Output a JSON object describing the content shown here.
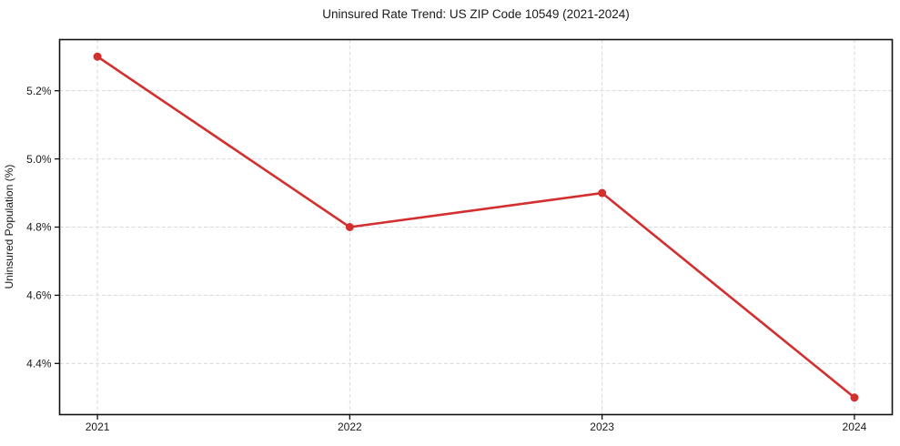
{
  "figure": {
    "background": "#ffffff"
  },
  "chart_data": {
    "type": "line",
    "title": "Uninsured Rate Trend: US ZIP Code 10549 (2021-2024)",
    "xlabel": "",
    "ylabel": "Uninsured Population (%)",
    "x": [
      2021,
      2022,
      2023,
      2024
    ],
    "series": [
      {
        "name": "Uninsured rate",
        "values": [
          5.3,
          4.8,
          4.9,
          4.3
        ]
      }
    ],
    "xticks": {
      "values": [
        2021,
        2022,
        2023,
        2024
      ],
      "labels": [
        "2021",
        "2022",
        "2023",
        "2024"
      ]
    },
    "yticks": {
      "values": [
        4.4,
        4.6,
        4.8,
        5.0,
        5.2
      ],
      "labels": [
        "4.4%",
        "4.6%",
        "4.8%",
        "5.0%",
        "5.2%"
      ]
    },
    "xlim": [
      2020.85,
      2024.15
    ],
    "ylim": [
      4.25,
      5.35
    ],
    "grid": true,
    "grid_style": "dashed",
    "legend": false,
    "style": {
      "line_color": "#d32f2f",
      "marker": "circle",
      "marker_radius": 4.5,
      "line_width": 2.6,
      "grid_color": "#d9d9d9",
      "grid_dash": "4 2.6",
      "axis_color": "#111111",
      "tick_color": "#111111",
      "text_color": "#1a1a1a"
    }
  }
}
